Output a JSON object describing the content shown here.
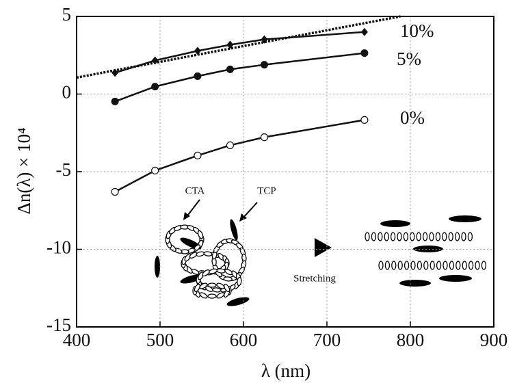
{
  "chart_data": {
    "type": "line",
    "x_label": "λ (nm)",
    "y_label": "Δn(λ) × 10⁴",
    "x": [
      446,
      494,
      545,
      584,
      625,
      745
    ],
    "series": [
      {
        "name": "10%",
        "color": "#111111",
        "marker": "diamond",
        "values": [
          1.37,
          2.16,
          2.78,
          3.17,
          3.52,
          4.0
        ]
      },
      {
        "name": "5%",
        "color": "#111111",
        "marker": "filled-circle",
        "values": [
          -0.48,
          0.48,
          1.15,
          1.59,
          1.89,
          2.64
        ]
      },
      {
        "name": "0%",
        "color": "#111111",
        "marker": "open-circle",
        "values": [
          -6.3,
          -4.93,
          -3.96,
          -3.3,
          -2.78,
          -1.67
        ]
      }
    ],
    "dashed_line": {
      "x": [
        400,
        788
      ],
      "values": [
        1.06,
        5
      ]
    },
    "annotations": [
      "CTA",
      "TCP",
      "Stretching"
    ],
    "xlim": [
      400,
      900
    ],
    "xticks": [
      400,
      500,
      600,
      700,
      800,
      900
    ],
    "ylim": [
      -15,
      5
    ],
    "yticks": [
      -15,
      -10,
      -5,
      0,
      5
    ],
    "grid": true
  }
}
